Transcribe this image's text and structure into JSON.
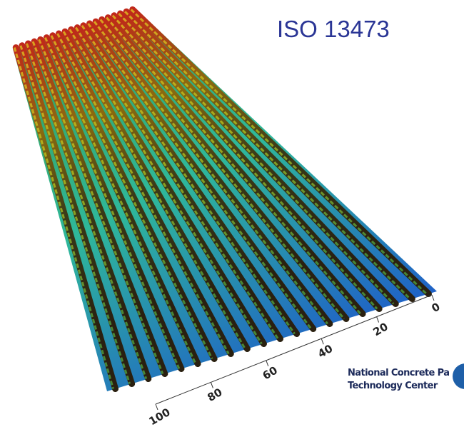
{
  "title": "ISO 13473",
  "axis": {
    "ticks": [
      0,
      20,
      40,
      60,
      80,
      100
    ]
  },
  "logo": {
    "lines": [
      "National Concrete Pa",
      "Technology Center"
    ]
  }
}
